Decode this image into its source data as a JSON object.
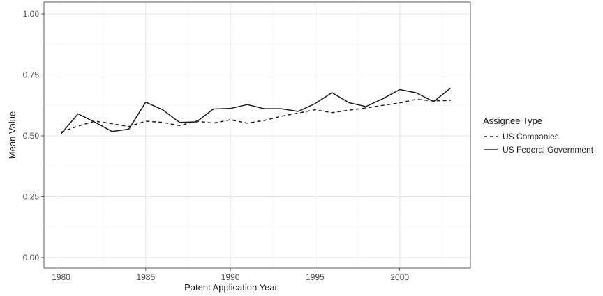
{
  "chart_data": {
    "type": "line",
    "xlabel": "Patent Application Year",
    "ylabel": "Mean Value",
    "xlim": [
      1980,
      2003
    ],
    "ylim": [
      0,
      1
    ],
    "x_ticks": [
      1980,
      1985,
      1990,
      1995,
      2000
    ],
    "x_tick_labels": [
      "1980",
      "1985",
      "1990",
      "1995",
      "2000"
    ],
    "y_ticks": [
      0,
      0.25,
      0.5,
      0.75,
      1.0
    ],
    "y_tick_labels": [
      "0.00",
      "0.25",
      "0.50",
      "0.75",
      "1.00"
    ],
    "grid": true,
    "legend": {
      "title": "Assignee Type",
      "position": "right"
    },
    "x": [
      1980,
      1981,
      1982,
      1983,
      1984,
      1985,
      1986,
      1987,
      1988,
      1989,
      1990,
      1991,
      1992,
      1993,
      1994,
      1995,
      1996,
      1997,
      1998,
      1999,
      2000,
      2001,
      2002,
      2003
    ],
    "series": [
      {
        "name": "US Companies",
        "line_style": "dashed",
        "color": "#1a1a1a",
        "values": [
          0.515,
          0.54,
          0.56,
          0.55,
          0.538,
          0.56,
          0.555,
          0.542,
          0.56,
          0.552,
          0.566,
          0.552,
          0.563,
          0.58,
          0.593,
          0.607,
          0.595,
          0.605,
          0.614,
          0.625,
          0.635,
          0.65,
          0.643,
          0.645
        ]
      },
      {
        "name": "US Federal Government",
        "line_style": "solid",
        "color": "#1a1a1a",
        "values": [
          0.508,
          0.59,
          0.556,
          0.518,
          0.527,
          0.638,
          0.607,
          0.555,
          0.557,
          0.61,
          0.612,
          0.628,
          0.611,
          0.611,
          0.6,
          0.632,
          0.677,
          0.636,
          0.62,
          0.652,
          0.69,
          0.676,
          0.64,
          0.696
        ]
      }
    ]
  }
}
